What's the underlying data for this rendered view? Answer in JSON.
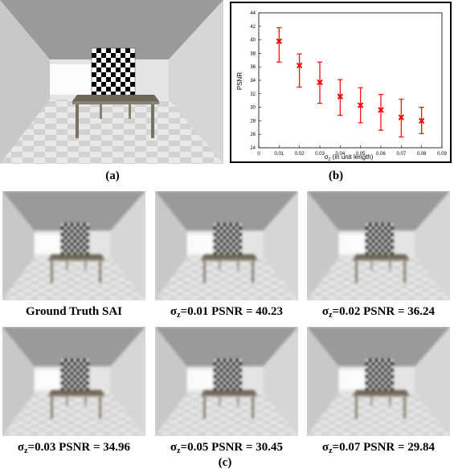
{
  "panel_labels": {
    "a": "(a)",
    "b": "(b)",
    "c": "(c)"
  },
  "captions": [
    {
      "prefix": "Ground Truth SAI",
      "sigma": "",
      "rest": ""
    },
    {
      "prefix": "σ",
      "sigma": "z",
      "rest": "=0.01 PSNR = 40.23"
    },
    {
      "prefix": "σ",
      "sigma": "z",
      "rest": "=0.02 PSNR = 36.24"
    },
    {
      "prefix": "σ",
      "sigma": "z",
      "rest": "=0.03 PSNR = 34.96"
    },
    {
      "prefix": "σ",
      "sigma": "z",
      "rest": "=0.05 PSNR = 30.45"
    },
    {
      "prefix": "σ",
      "sigma": "z",
      "rest": "=0.07 PSNR = 29.84"
    }
  ],
  "chart_data": {
    "type": "scatter",
    "title": "",
    "xlabel_main": "σ",
    "xlabel_sub": "z",
    "xlabel_rest": " (in unit length)",
    "ylabel": "PSNR",
    "xlim": [
      0,
      0.09
    ],
    "ylim": [
      24,
      44
    ],
    "x_ticks": [
      "0",
      "0.01",
      "0.02",
      "0.03",
      "0.04",
      "0.05",
      "0.06",
      "0.07",
      "0.08",
      "0.09"
    ],
    "y_ticks": [
      "24",
      "26",
      "28",
      "30",
      "32",
      "34",
      "36",
      "38",
      "40",
      "42",
      "44"
    ],
    "grid": false,
    "color": "#ff0000",
    "points": [
      {
        "x": 0.01,
        "y": 39.8,
        "lo": 36.7,
        "hi": 41.8
      },
      {
        "x": 0.02,
        "y": 36.2,
        "lo": 33.0,
        "hi": 37.9
      },
      {
        "x": 0.03,
        "y": 33.7,
        "lo": 30.6,
        "hi": 36.7
      },
      {
        "x": 0.04,
        "y": 31.6,
        "lo": 28.8,
        "hi": 34.1
      },
      {
        "x": 0.05,
        "y": 30.3,
        "lo": 27.7,
        "hi": 32.9
      },
      {
        "x": 0.06,
        "y": 29.6,
        "lo": 26.6,
        "hi": 31.9
      },
      {
        "x": 0.07,
        "y": 28.5,
        "lo": 25.6,
        "hi": 31.2
      },
      {
        "x": 0.08,
        "y": 28.0,
        "lo": 26.1,
        "hi": 30.0
      }
    ]
  }
}
